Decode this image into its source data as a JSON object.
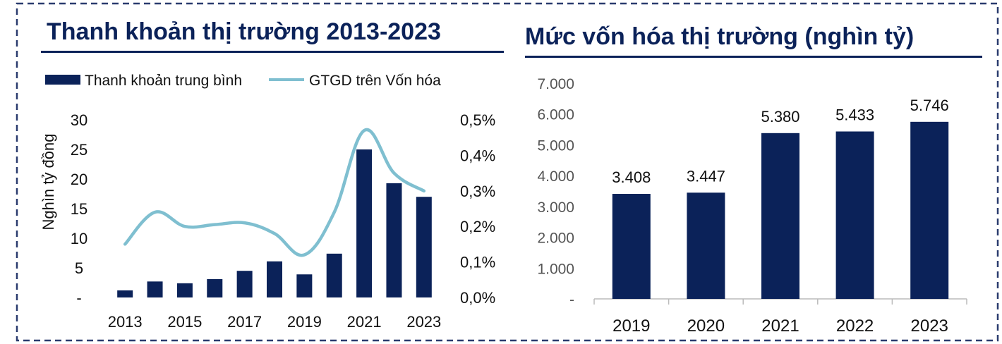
{
  "colors": {
    "navy": "#0b2259",
    "line": "#7fbfd0",
    "border": "#2a3b6e"
  },
  "chart_data": [
    {
      "type": "bar",
      "title": "Thanh khoản thị trường 2013-2023",
      "ylabel": "Nghìn tỷ đồng",
      "legend_position": "top-left",
      "categories": [
        "2013",
        "2014",
        "2015",
        "2016",
        "2017",
        "2018",
        "2019",
        "2020",
        "2021",
        "2022",
        "2023"
      ],
      "x_tick_labels": [
        "2013",
        "2015",
        "2017",
        "2019",
        "2021",
        "2023"
      ],
      "y_ticks": [
        "-",
        "5",
        "10",
        "15",
        "20",
        "25",
        "30"
      ],
      "ylim": [
        0,
        30
      ],
      "y2_ticks": [
        "0,0%",
        "0,1%",
        "0,2%",
        "0,3%",
        "0,4%",
        "0,5%"
      ],
      "y2lim": [
        0,
        0.5
      ],
      "grid": false,
      "series": [
        {
          "name": "Thanh khoản trung bình",
          "type": "bar",
          "axis": "left",
          "values": [
            1.2,
            2.7,
            2.4,
            3.1,
            4.5,
            6.1,
            3.9,
            7.4,
            25.0,
            19.3,
            17.0
          ]
        },
        {
          "name": "GTGD trên Vốn hóa",
          "type": "line",
          "axis": "right",
          "values": [
            0.15,
            0.24,
            0.2,
            0.205,
            0.21,
            0.18,
            0.12,
            0.24,
            0.47,
            0.35,
            0.3
          ]
        }
      ]
    },
    {
      "type": "bar",
      "title": "Mức vốn hóa thị trường (nghìn tỷ)",
      "categories": [
        "2019",
        "2020",
        "2021",
        "2022",
        "2023"
      ],
      "values": [
        3408,
        3447,
        5380,
        5433,
        5746
      ],
      "value_labels": [
        "3.408",
        "3.447",
        "5.380",
        "5.433",
        "5.746"
      ],
      "y_ticks": [
        "-",
        "1.000",
        "2.000",
        "3.000",
        "4.000",
        "5.000",
        "6.000",
        "7.000"
      ],
      "ylim": [
        0,
        7000
      ],
      "grid": false
    }
  ]
}
